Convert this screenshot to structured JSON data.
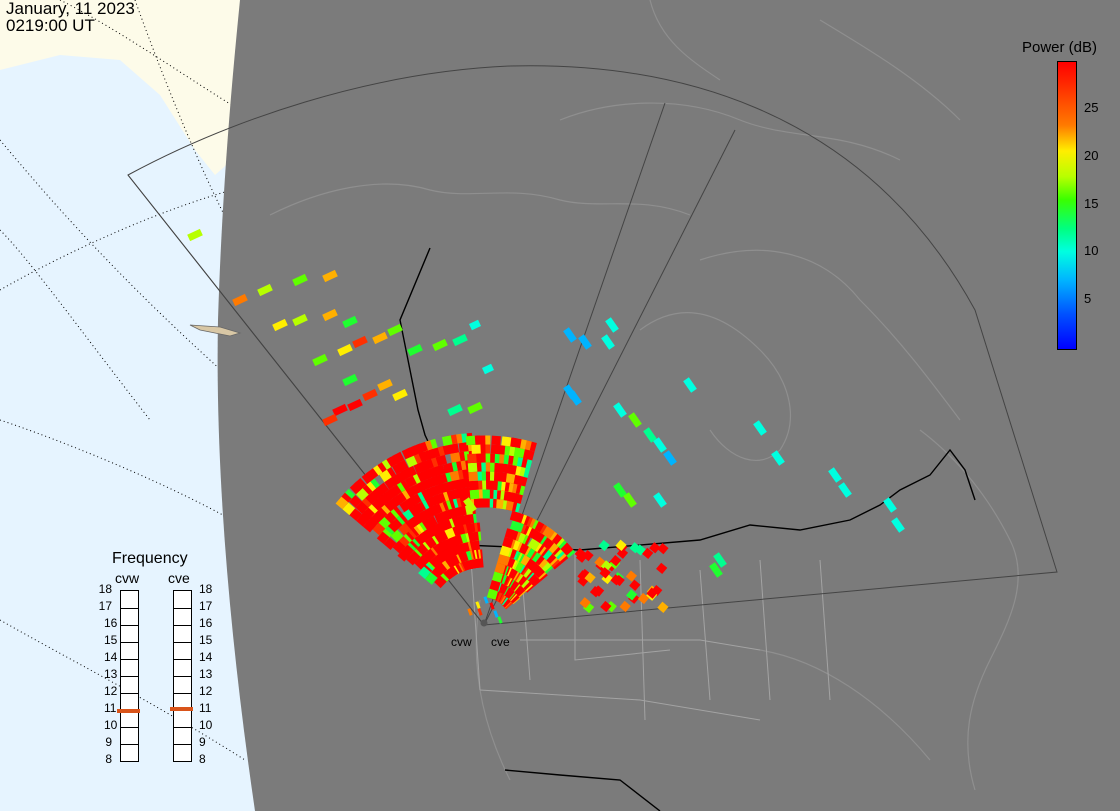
{
  "header": {
    "date": "January, 11 2023",
    "time": "0219:00 UT"
  },
  "colorbar": {
    "title": "Power (dB)",
    "ticks": [
      "25",
      "20",
      "15",
      "10",
      "5"
    ],
    "tick_values": [
      25,
      20,
      15,
      10,
      5
    ],
    "range": [
      0,
      30
    ]
  },
  "frequency": {
    "title": "Frequency",
    "cvw_label": "cvw",
    "cve_label": "cve",
    "scale": [
      "18",
      "17",
      "16",
      "15",
      "14",
      "13",
      "12",
      "11",
      "10",
      "9",
      "8"
    ],
    "cvw_value": 10.9,
    "cve_value": 11.0
  },
  "radars": {
    "cvw": "cvw",
    "cve": "cve"
  },
  "colors": {
    "ocean": "#e6f4ff",
    "ice": "#fdfbe9",
    "night": "#7b7b7b",
    "marker": "#d9541a"
  }
}
